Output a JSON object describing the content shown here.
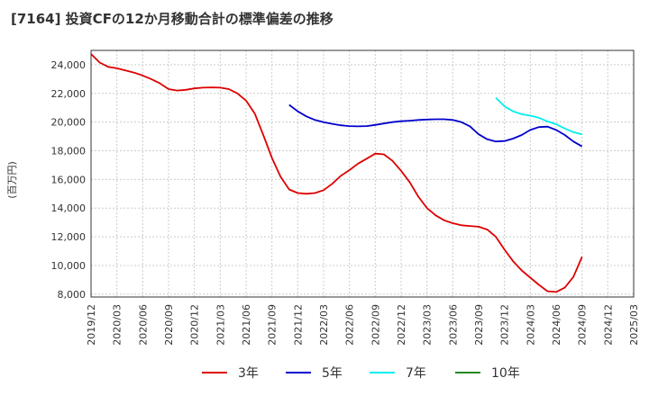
{
  "chart_data": {
    "type": "line",
    "title": "[7164]  投資CFの12か月移動合計の標準偏差の推移",
    "ylabel": "(百万円)",
    "xlabel": "",
    "ylim": [
      7800,
      25000
    ],
    "xlim": [
      "2019/12",
      "2025/03"
    ],
    "grid": true,
    "legend_position": "bottom",
    "y_ticks": [
      "8,000",
      "10,000",
      "12,000",
      "14,000",
      "16,000",
      "18,000",
      "20,000",
      "22,000",
      "24,000"
    ],
    "x_ticks": [
      "2019/12",
      "2020/03",
      "2020/06",
      "2020/09",
      "2020/12",
      "2021/03",
      "2021/06",
      "2021/09",
      "2021/12",
      "2022/03",
      "2022/06",
      "2022/09",
      "2022/12",
      "2023/03",
      "2023/06",
      "2023/09",
      "2023/12",
      "2024/03",
      "2024/06",
      "2024/09",
      "2024/12",
      "2025/03"
    ],
    "series": [
      {
        "name": "3年",
        "color": "#dd0000",
        "x": [
          "2019/12",
          "2020/01",
          "2020/02",
          "2020/03",
          "2020/04",
          "2020/05",
          "2020/06",
          "2020/07",
          "2020/08",
          "2020/09",
          "2020/10",
          "2020/11",
          "2020/12",
          "2021/01",
          "2021/02",
          "2021/03",
          "2021/04",
          "2021/05",
          "2021/06",
          "2021/07",
          "2021/08",
          "2021/09",
          "2021/10",
          "2021/11",
          "2021/12",
          "2022/01",
          "2022/02",
          "2022/03",
          "2022/04",
          "2022/05",
          "2022/06",
          "2022/07",
          "2022/08",
          "2022/09",
          "2022/10",
          "2022/11",
          "2022/12",
          "2023/01",
          "2023/02",
          "2023/03",
          "2023/04",
          "2023/05",
          "2023/06",
          "2023/07",
          "2023/08",
          "2023/09",
          "2023/10",
          "2023/11",
          "2023/12",
          "2024/01",
          "2024/02",
          "2024/03",
          "2024/04",
          "2024/05",
          "2024/06",
          "2024/07",
          "2024/08",
          "2024/09"
        ],
        "values": [
          24750,
          24150,
          23850,
          23750,
          23600,
          23450,
          23250,
          23000,
          22700,
          22300,
          22200,
          22250,
          22350,
          22400,
          22420,
          22400,
          22300,
          22000,
          21500,
          20600,
          19100,
          17500,
          16200,
          15300,
          15050,
          15000,
          15050,
          15250,
          15700,
          16250,
          16650,
          17100,
          17450,
          17800,
          17750,
          17300,
          16600,
          15800,
          14800,
          14000,
          13500,
          13150,
          12950,
          12800,
          12750,
          12700,
          12500,
          12000,
          11100,
          10300,
          9650,
          9150,
          8650,
          8200,
          8150,
          8450,
          9200,
          10600
        ]
      },
      {
        "name": "5年",
        "color": "#0000cc",
        "x": [
          "2021/11",
          "2021/12",
          "2022/01",
          "2022/02",
          "2022/03",
          "2022/04",
          "2022/05",
          "2022/06",
          "2022/07",
          "2022/08",
          "2022/09",
          "2022/10",
          "2022/11",
          "2022/12",
          "2023/01",
          "2023/02",
          "2023/03",
          "2023/04",
          "2023/05",
          "2023/06",
          "2023/07",
          "2023/08",
          "2023/09",
          "2023/10",
          "2023/11",
          "2023/12",
          "2024/01",
          "2024/02",
          "2024/03",
          "2024/04",
          "2024/05",
          "2024/06",
          "2024/07",
          "2024/08",
          "2024/09"
        ],
        "values": [
          21200,
          20750,
          20400,
          20150,
          20000,
          19880,
          19780,
          19720,
          19700,
          19720,
          19800,
          19900,
          20000,
          20060,
          20100,
          20150,
          20180,
          20200,
          20200,
          20150,
          20000,
          19700,
          19150,
          18800,
          18650,
          18680,
          18850,
          19100,
          19450,
          19650,
          19680,
          19450,
          19100,
          18650,
          18300
        ]
      },
      {
        "name": "7年",
        "color": "#00eeee",
        "x": [
          "2023/11",
          "2023/12",
          "2024/01",
          "2024/02",
          "2024/03",
          "2024/04",
          "2024/05",
          "2024/06",
          "2024/07",
          "2024/08",
          "2024/09"
        ],
        "values": [
          21700,
          21100,
          20750,
          20550,
          20450,
          20300,
          20050,
          19850,
          19550,
          19300,
          19150
        ]
      },
      {
        "name": "10年",
        "color": "#228822",
        "x": [],
        "values": []
      }
    ]
  }
}
